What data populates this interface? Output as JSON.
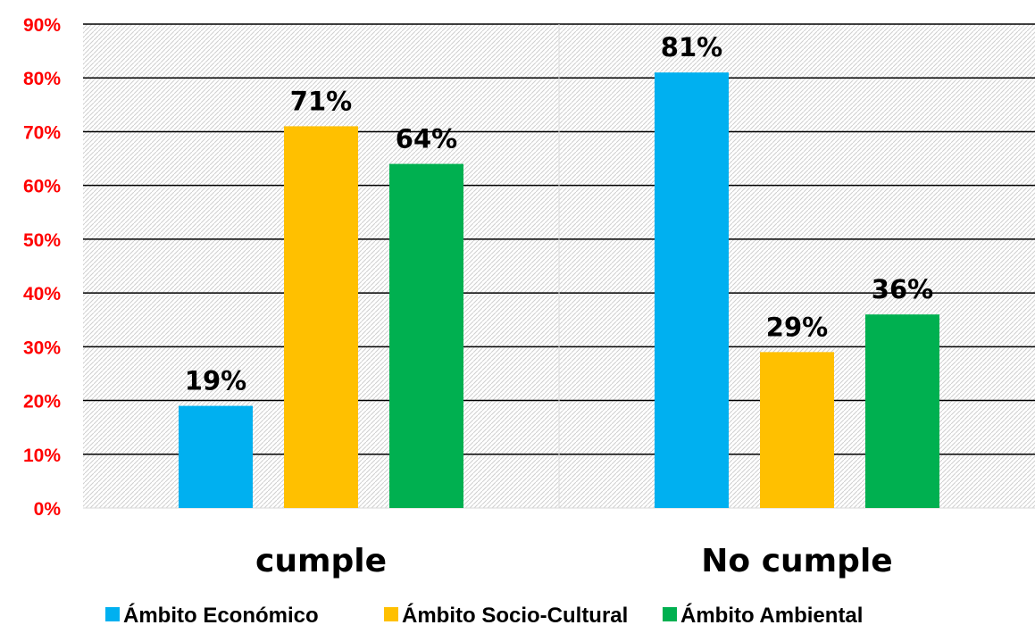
{
  "chart_data": {
    "type": "bar",
    "categories": [
      "cumple",
      "No cumple"
    ],
    "series": [
      {
        "name": "Ámbito Económico",
        "values": [
          19,
          81
        ],
        "labels": [
          "19%",
          "81%"
        ],
        "color": "#00b0f0"
      },
      {
        "name": "Ámbito Socio-Cultural",
        "values": [
          71,
          29
        ],
        "labels": [
          "71%",
          "29%"
        ],
        "color": "#ffc000"
      },
      {
        "name": "Ámbito Ambiental",
        "values": [
          64,
          36
        ],
        "labels": [
          "64%",
          "36%"
        ],
        "color": "#00b050"
      }
    ],
    "ylim": [
      0,
      90
    ],
    "y_ticks": [
      "0%",
      "10%",
      "20%",
      "30%",
      "40%",
      "50%",
      "60%",
      "70%",
      "80%",
      "90%"
    ],
    "grid": true,
    "legend_position": "bottom",
    "title": "",
    "xlabel": "",
    "ylabel": ""
  }
}
